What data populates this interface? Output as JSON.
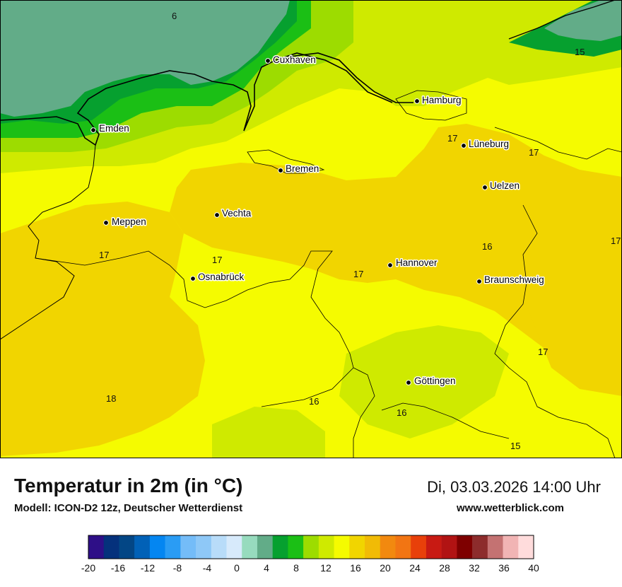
{
  "map": {
    "cities": [
      {
        "name": "Cuxhaven"
      },
      {
        "name": "Hamburg"
      },
      {
        "name": "Emden"
      },
      {
        "name": "Lüneburg"
      },
      {
        "name": "Bremen"
      },
      {
        "name": "Uelzen"
      },
      {
        "name": "Vechta"
      },
      {
        "name": "Meppen"
      },
      {
        "name": "Hannover"
      },
      {
        "name": "Osnabrück"
      },
      {
        "name": "Braunschweig"
      },
      {
        "name": "Göttingen"
      }
    ],
    "isotherm_labels": [
      "6",
      "15",
      "17",
      "17",
      "17",
      "17",
      "17",
      "16",
      "17",
      "17",
      "18",
      "16",
      "16",
      "15",
      "17"
    ]
  },
  "footer": {
    "title": "Temperatur in 2m (in °C)",
    "model": "Modell: ICON-D2 12z, Deutscher Wetterdienst",
    "datetime": "Di, 03.03.2026 14:00 Uhr",
    "website": "www.wetterblick.com"
  },
  "legend": {
    "tick_labels": [
      "-20",
      "-16",
      "-12",
      "-8",
      "-4",
      "0",
      "4",
      "8",
      "12",
      "16",
      "20",
      "24",
      "28",
      "32",
      "36",
      "40"
    ],
    "colors": [
      "#2e0f87",
      "#05317c",
      "#034685",
      "#0161b7",
      "#0486f1",
      "#2a9cf4",
      "#74bcf8",
      "#8ec8f7",
      "#b8dcf9",
      "#d7eafb",
      "#97dbbe",
      "#62ac88",
      "#06a02f",
      "#1bbf15",
      "#9ddc00",
      "#cfea00",
      "#f5fb00",
      "#f1d500",
      "#f1bb06",
      "#f2890f",
      "#f27513",
      "#e8400a",
      "#c81a13",
      "#b11313",
      "#7e0000",
      "#8d2c2c",
      "#c47272",
      "#f1b4b4",
      "#ffdcdc"
    ]
  }
}
